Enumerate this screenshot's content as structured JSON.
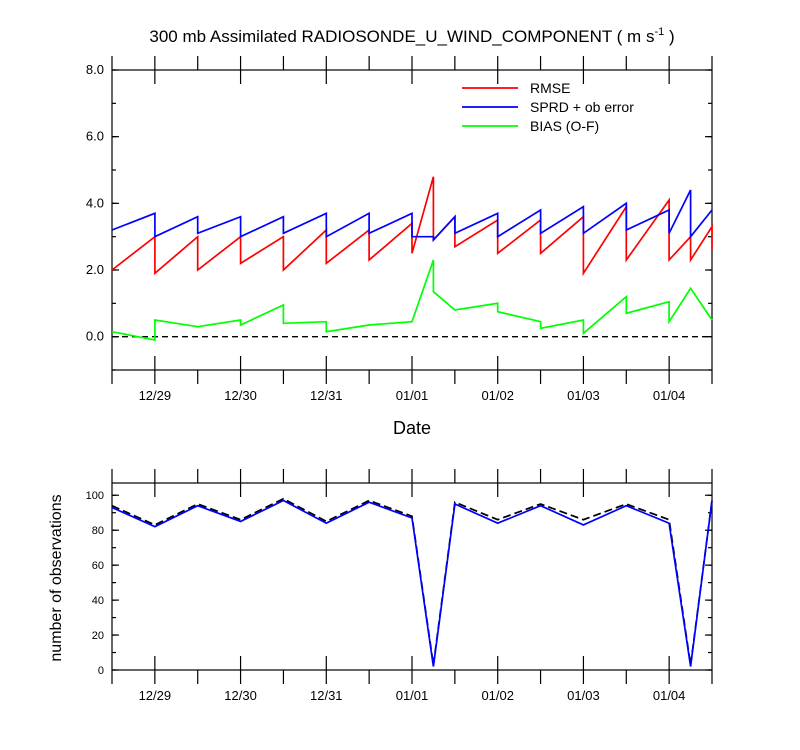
{
  "chart_data": [
    {
      "type": "line",
      "title": "300 mb Assimilated RADIOSONDE_U_WIND_COMPONENT ( m s",
      "title_unit_sup": "-1",
      "title_close": " )",
      "xlabel": "Date",
      "ylabel": "",
      "ylim": [
        -1,
        8
      ],
      "xlim": [
        0,
        14
      ],
      "y_tick_values": [
        0,
        2,
        4,
        6,
        8
      ],
      "y_tick_labels": [
        "0.0",
        "2.0",
        "4.0",
        "6.0",
        "8.0"
      ],
      "x_major_ticks": [
        1,
        3,
        5,
        7,
        9,
        11,
        13
      ],
      "x_tick_labels": [
        "12/29",
        "12/30",
        "12/31",
        "01/01",
        "01/02",
        "01/03",
        "01/04"
      ],
      "x_minor_ticks": [
        0,
        2,
        4,
        6,
        8,
        10,
        12,
        14
      ],
      "x_units": "half-day steps starting 12/28 12Z",
      "legend_position": "top-right",
      "zero_line": true,
      "series": [
        {
          "name": "RMSE",
          "color": "#ff0000",
          "points": [
            [
              0,
              2.0
            ],
            [
              1,
              3.0
            ],
            [
              1,
              1.9
            ],
            [
              2,
              3.0
            ],
            [
              2,
              2.0
            ],
            [
              3,
              3.0
            ],
            [
              3,
              2.2
            ],
            [
              4,
              3.0
            ],
            [
              4,
              2.0
            ],
            [
              5,
              3.2
            ],
            [
              5,
              2.2
            ],
            [
              6,
              3.2
            ],
            [
              6,
              2.3
            ],
            [
              7,
              3.4
            ],
            [
              7,
              2.5
            ],
            [
              7.5,
              4.8
            ],
            [
              7.5,
              2.9
            ],
            [
              8,
              3.6
            ],
            [
              8,
              2.7
            ],
            [
              9,
              3.5
            ],
            [
              9,
              2.5
            ],
            [
              10,
              3.5
            ],
            [
              10,
              2.5
            ],
            [
              11,
              3.6
            ],
            [
              11,
              1.9
            ],
            [
              12,
              3.9
            ],
            [
              12,
              2.3
            ],
            [
              13,
              4.1
            ],
            [
              13,
              2.3
            ],
            [
              13.5,
              3.0
            ],
            [
              13.5,
              2.3
            ],
            [
              14,
              3.3
            ],
            [
              14,
              2.6
            ]
          ]
        },
        {
          "name": "SPRD + ob error",
          "color": "#0000ff",
          "points": [
            [
              0,
              3.2
            ],
            [
              1,
              3.7
            ],
            [
              1,
              3.0
            ],
            [
              2,
              3.6
            ],
            [
              2,
              3.1
            ],
            [
              3,
              3.6
            ],
            [
              3,
              3.0
            ],
            [
              4,
              3.6
            ],
            [
              4,
              3.1
            ],
            [
              5,
              3.7
            ],
            [
              5,
              3.0
            ],
            [
              6,
              3.7
            ],
            [
              6,
              3.1
            ],
            [
              7,
              3.7
            ],
            [
              7,
              3.0
            ],
            [
              7.5,
              3.0
            ],
            [
              7.5,
              2.9
            ],
            [
              8,
              3.6
            ],
            [
              8,
              3.1
            ],
            [
              9,
              3.7
            ],
            [
              9,
              3.0
            ],
            [
              10,
              3.8
            ],
            [
              10,
              3.1
            ],
            [
              11,
              3.9
            ],
            [
              11,
              3.1
            ],
            [
              12,
              4.0
            ],
            [
              12,
              3.2
            ],
            [
              13,
              3.8
            ],
            [
              13,
              3.1
            ],
            [
              13.5,
              4.4
            ],
            [
              13.5,
              3.0
            ],
            [
              14,
              3.8
            ]
          ]
        },
        {
          "name": "BIAS (O-F)",
          "color": "#00ff00",
          "points": [
            [
              0,
              0.15
            ],
            [
              1,
              -0.1
            ],
            [
              1,
              0.5
            ],
            [
              2,
              0.3
            ],
            [
              3,
              0.5
            ],
            [
              3,
              0.35
            ],
            [
              4,
              0.95
            ],
            [
              4,
              0.4
            ],
            [
              5,
              0.45
            ],
            [
              5,
              0.15
            ],
            [
              6,
              0.35
            ],
            [
              7,
              0.45
            ],
            [
              7.5,
              2.3
            ],
            [
              7.5,
              1.35
            ],
            [
              8,
              0.8
            ],
            [
              9,
              1.0
            ],
            [
              9,
              0.75
            ],
            [
              10,
              0.45
            ],
            [
              10,
              0.25
            ],
            [
              11,
              0.5
            ],
            [
              11,
              0.1
            ],
            [
              12,
              1.2
            ],
            [
              12,
              0.7
            ],
            [
              13,
              1.05
            ],
            [
              13,
              0.45
            ],
            [
              13.5,
              1.45
            ],
            [
              14,
              0.5
            ]
          ]
        }
      ]
    },
    {
      "type": "line",
      "title": "",
      "xlabel": "",
      "ylabel": "number of observations",
      "ylim": [
        0,
        107
      ],
      "xlim": [
        0,
        14
      ],
      "y_tick_values": [
        0,
        20,
        40,
        60,
        80,
        100
      ],
      "y_tick_labels": [
        "0",
        "20",
        "40",
        "60",
        "80",
        "100"
      ],
      "x_major_ticks": [
        1,
        3,
        5,
        7,
        9,
        11,
        13
      ],
      "x_tick_labels": [
        "12/29",
        "12/30",
        "12/31",
        "01/01",
        "01/02",
        "01/03",
        "01/04"
      ],
      "x_minor_ticks": [
        0,
        2,
        4,
        6,
        8,
        10,
        12,
        14
      ],
      "series": [
        {
          "color": "#000000",
          "dashed": true,
          "points": [
            [
              0,
              94
            ],
            [
              1,
              83
            ],
            [
              2,
              95
            ],
            [
              3,
              86
            ],
            [
              4,
              98
            ],
            [
              5,
              85
            ],
            [
              6,
              97
            ],
            [
              7,
              88
            ],
            [
              7.5,
              3
            ],
            [
              8,
              96
            ],
            [
              9,
              86
            ],
            [
              10,
              95
            ],
            [
              11,
              86
            ],
            [
              12,
              95
            ],
            [
              13,
              86
            ],
            [
              13.5,
              3
            ],
            [
              14,
              97
            ]
          ]
        },
        {
          "color": "#0000ff",
          "dashed": false,
          "points": [
            [
              0,
              93
            ],
            [
              1,
              82
            ],
            [
              2,
              94
            ],
            [
              3,
              85
            ],
            [
              4,
              97
            ],
            [
              5,
              84
            ],
            [
              6,
              96
            ],
            [
              7,
              87
            ],
            [
              7.5,
              2
            ],
            [
              8,
              95
            ],
            [
              9,
              84
            ],
            [
              10,
              94
            ],
            [
              11,
              83
            ],
            [
              12,
              94
            ],
            [
              13,
              84
            ],
            [
              13.5,
              2
            ],
            [
              14,
              97
            ]
          ]
        }
      ]
    }
  ]
}
